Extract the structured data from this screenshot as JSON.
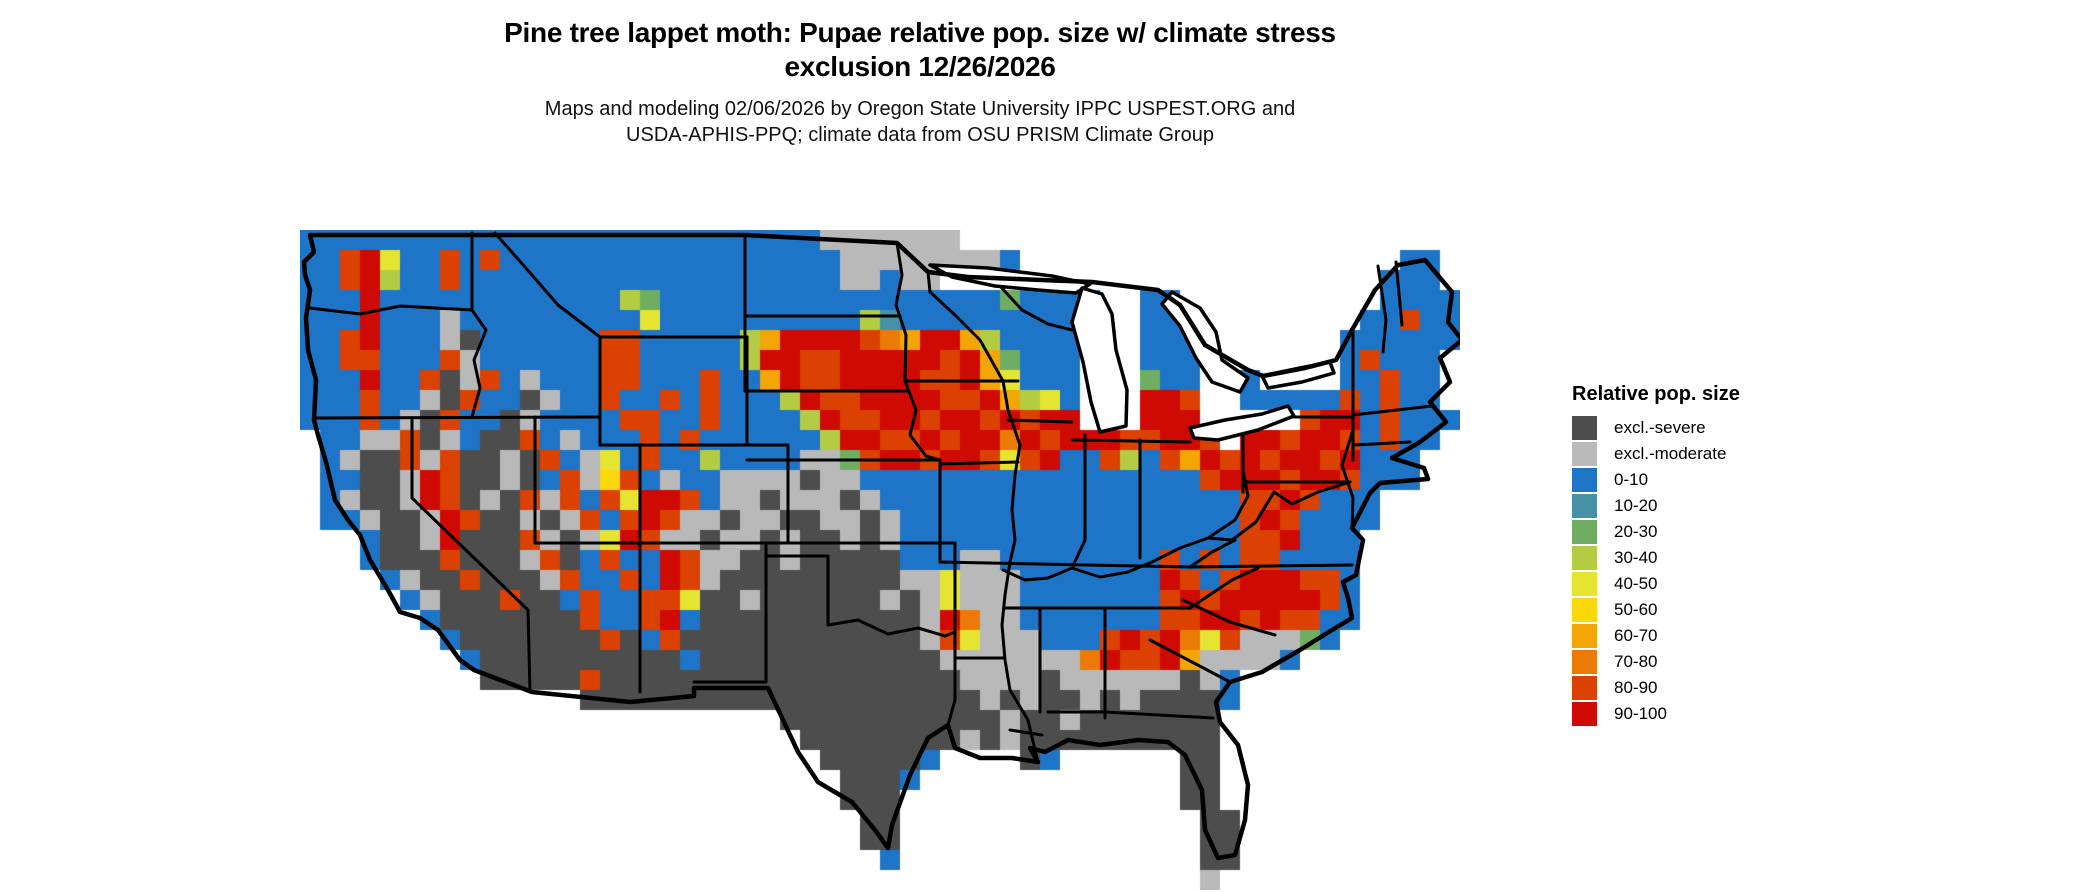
{
  "title": {
    "line1": "Pine tree lappet moth: Pupae relative pop. size w/ climate stress",
    "line2": "exclusion 12/26/2026"
  },
  "subtitle": {
    "line1": "Maps and modeling 02/06/2026 by Oregon State University IPPC USPEST.ORG and",
    "line2": "USDA-APHIS-PPQ; climate data from OSU PRISM Climate Group"
  },
  "legend": {
    "title": "Relative pop. size",
    "items": [
      {
        "label": "excl.-severe",
        "color": "#4D4D4D"
      },
      {
        "label": "excl.-moderate",
        "color": "#B9B9B9"
      },
      {
        "label": "0-10",
        "color": "#1E74C6"
      },
      {
        "label": "10-20",
        "color": "#4691A6"
      },
      {
        "label": "20-30",
        "color": "#6FAE62"
      },
      {
        "label": "30-40",
        "color": "#B3CC44"
      },
      {
        "label": "40-50",
        "color": "#E5E431"
      },
      {
        "label": "50-60",
        "color": "#FBD70B"
      },
      {
        "label": "60-70",
        "color": "#F3A503"
      },
      {
        "label": "70-80",
        "color": "#EB7A06"
      },
      {
        "label": "80-90",
        "color": "#DB4101"
      },
      {
        "label": "90-100",
        "color": "#CF0A02"
      }
    ]
  },
  "map": {
    "cell_size": 20,
    "palette": {
      "S": "#4D4D4D",
      "M": "#B9B9B9",
      "B": "#1E74C6",
      "T": "#4691A6",
      "G": "#6FAE62",
      "L": "#B3CC44",
      "Y": "#E5E431",
      "D": "#FBD70B",
      "O": "#F3A503",
      "P": "#EB7A06",
      "R": "#DB4101",
      "Z": "#CF0A02"
    },
    "grid": [
      "BBBBBBBBBBBBBBBBBBBBBBBBBBMMMMMMM.........................",
      "BBRZYBBRBRBBBBBBBBBBBBBBBBBMMMMMMMMB...................BB.",
      "BBRZLBBRBBBBBBBBBBBBBBBBBBBMMBMM......................BBB.",
      "BBBZBBBBBBBBBBBBLGBBBBBBBBBBBBBBBBBGBBBB..BB..........BBBB",
      "BBBZBBBMBBBBBBBBBYBBBBBBBBBBLTBBBBBBBBB...BB.........BBRBB",
      "BBRZBBBMSBBBBBBRRBBBBBLOZZZZRPOZZOLBBBB...BBB.......BBBBBB",
      "BBRRBBBRMBBBBBBRRBBBBBLZZRRZZZZZRZOGBBB...BBB.......BRBBB.",
      "BBBZBBRSMRBMBBBRRBBBRBBOZRRZZZZRRZOYBBB...GBB..B....BBRBB.",
      "BBBRBBMSRBBSMBBRBBRBRBBBLZRRZZZZRRZOLYB...ZZR..BBBBBRBRBB.",
      "BBBRBMSRBBSMBBBBRRBBRBBBBLZRRZZRZZRZRZZ...ZZZ.....RZZBRBBB",
      ".BBMMRSMBSSRBMBBBRBRBBBBBBLZZRRZRZZPZRZZZRRZZR.ZZRZZRBRBB.",
      ".BMSSRMRSSMSRBMYBRBBLBBBBMMGRZZRZZRYRZBBRLBROZRZRZZRZBBB..",
      ".BBSSMZRSSMSBRMDRBMBBMMMMSMMBBBBBBBBBBBBBBBBBRZZZRZZRBBB..",
      ".BMSSMZRSMSRMRBRYZZRBMMSMMMSMBBBBBBBBBBBBBBBBBBRRZRBBB....",
      ".BBMSSMZRSSMSMRBRZRMMSMMSSMMSMBBBBBBBBBBBBBBBBBRZRBBBB....",
      "...BSSMZSSSRMSMYZRMMSMMSMSSMSMBBBBBBBBBBBBBBBBBRRZBBB.....",
      "...BSSSRSSSMRSBRBBZRMMSSMSSSSSBBBMMBBBBBBBBRBRBRRBBBB.....",
      "....BMSSRSSSMRBBRBZRMSSSSSSSSSMMYMMMBBBBBBBZRBRZZZRRB.....",
      ".....BMSSSRSSBRBBRRYSSMSSSSSSMSMYMMMBBBBBBBRZRZZZZZRB.....",
      "......BSSSSSSSRBBRZBSSSSSSSSSSSMZPMMBBBBBBBRRZZRZRRBB.....",
      ".......BSSSSSSSRSBRSSSSSSSSSSSSMRYMMMBBBRZRZPYRMMMGB......",
      "........BSSSSSSSSSSBSSSSSSSSSSSSMMMMMMMPZRRZOMMMMB........",
      ".........SSSSSRSSSSSSSSSSSSSSSSSSMMMMSMMMMMMSMB...........",
      "..............SSSSSSSSSSSSSSSSSSSSMSMSSMSMSSSSB...........",
      "........................SSSSSSSSSSSMSSMSSSSSSS............",
      ".........................SSSSSSSSMSMSSSSSSSSSS............",
      "..........................SSSSSB....SB......SS............",
      "...........................SSSB.............SS............",
      "...........................SSS..............SS............",
      "............................SS...............SS...........",
      "............................SS...............SS...........",
      ".............................B...............SS...........",
      ".............................................M............"
    ]
  }
}
